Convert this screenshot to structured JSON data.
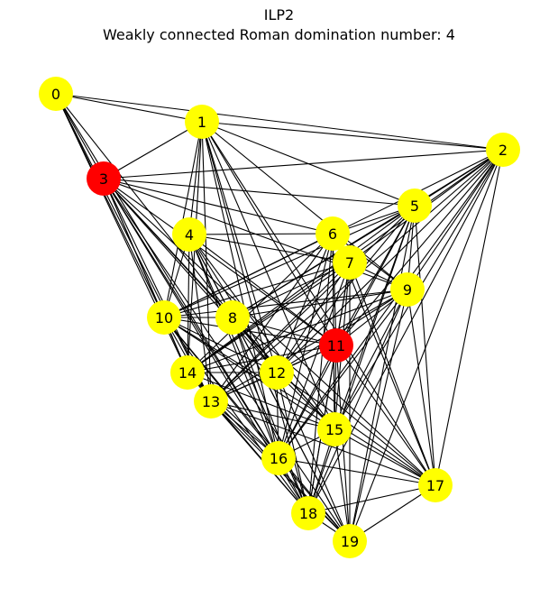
{
  "title": "ILP2",
  "subtitle": "Weakly connected Roman domination number: 4",
  "colors": {
    "default_node": "#ffff00",
    "highlight_node": "#ff0000",
    "edge": "#000000",
    "background": "#ffffff"
  },
  "graph": {
    "nodes": [
      {
        "id": 0,
        "label": "0",
        "color": "yellow"
      },
      {
        "id": 1,
        "label": "1",
        "color": "yellow"
      },
      {
        "id": 2,
        "label": "2",
        "color": "yellow"
      },
      {
        "id": 3,
        "label": "3",
        "color": "red"
      },
      {
        "id": 4,
        "label": "4",
        "color": "yellow"
      },
      {
        "id": 5,
        "label": "5",
        "color": "yellow"
      },
      {
        "id": 6,
        "label": "6",
        "color": "yellow"
      },
      {
        "id": 7,
        "label": "7",
        "color": "yellow"
      },
      {
        "id": 8,
        "label": "8",
        "color": "yellow"
      },
      {
        "id": 9,
        "label": "9",
        "color": "yellow"
      },
      {
        "id": 10,
        "label": "10",
        "color": "yellow"
      },
      {
        "id": 11,
        "label": "11",
        "color": "red"
      },
      {
        "id": 12,
        "label": "12",
        "color": "yellow"
      },
      {
        "id": 13,
        "label": "13",
        "color": "yellow"
      },
      {
        "id": 14,
        "label": "14",
        "color": "yellow"
      },
      {
        "id": 15,
        "label": "15",
        "color": "yellow"
      },
      {
        "id": 16,
        "label": "16",
        "color": "yellow"
      },
      {
        "id": 17,
        "label": "17",
        "color": "yellow"
      },
      {
        "id": 18,
        "label": "18",
        "color": "yellow"
      },
      {
        "id": 19,
        "label": "19",
        "color": "yellow"
      }
    ],
    "edges": [
      [
        0,
        1
      ],
      [
        0,
        2
      ],
      [
        0,
        3
      ],
      [
        0,
        10
      ],
      [
        0,
        13
      ],
      [
        0,
        14
      ],
      [
        0,
        16
      ],
      [
        0,
        12
      ],
      [
        1,
        2
      ],
      [
        1,
        3
      ],
      [
        1,
        4
      ],
      [
        1,
        5
      ],
      [
        1,
        10
      ],
      [
        1,
        14
      ],
      [
        1,
        11
      ],
      [
        1,
        12
      ],
      [
        1,
        15
      ],
      [
        1,
        16
      ],
      [
        1,
        17
      ],
      [
        1,
        18
      ],
      [
        1,
        9
      ],
      [
        1,
        13
      ],
      [
        2,
        3
      ],
      [
        2,
        5
      ],
      [
        2,
        7
      ],
      [
        2,
        9
      ],
      [
        2,
        8
      ],
      [
        2,
        11
      ],
      [
        2,
        12
      ],
      [
        2,
        14
      ],
      [
        2,
        15
      ],
      [
        2,
        16
      ],
      [
        2,
        17
      ],
      [
        2,
        18
      ],
      [
        2,
        19
      ],
      [
        2,
        10
      ],
      [
        2,
        13
      ],
      [
        3,
        5
      ],
      [
        3,
        6
      ],
      [
        3,
        8
      ],
      [
        3,
        10
      ],
      [
        3,
        11
      ],
      [
        3,
        12
      ],
      [
        3,
        13
      ],
      [
        3,
        14
      ],
      [
        3,
        15
      ],
      [
        3,
        16
      ],
      [
        3,
        17
      ],
      [
        3,
        18
      ],
      [
        3,
        19
      ],
      [
        3,
        9
      ],
      [
        4,
        6
      ],
      [
        4,
        7
      ],
      [
        4,
        10
      ],
      [
        4,
        11
      ],
      [
        4,
        12
      ],
      [
        4,
        13
      ],
      [
        4,
        14
      ],
      [
        4,
        15
      ],
      [
        4,
        16
      ],
      [
        4,
        18
      ],
      [
        4,
        19
      ],
      [
        4,
        8
      ],
      [
        5,
        8
      ],
      [
        5,
        10
      ],
      [
        5,
        11
      ],
      [
        5,
        12
      ],
      [
        5,
        13
      ],
      [
        5,
        14
      ],
      [
        5,
        15
      ],
      [
        5,
        16
      ],
      [
        5,
        17
      ],
      [
        5,
        18
      ],
      [
        5,
        19
      ],
      [
        5,
        6
      ],
      [
        5,
        9
      ],
      [
        6,
        7
      ],
      [
        6,
        9
      ],
      [
        6,
        10
      ],
      [
        6,
        11
      ],
      [
        6,
        12
      ],
      [
        6,
        15
      ],
      [
        6,
        16
      ],
      [
        6,
        17
      ],
      [
        6,
        18
      ],
      [
        6,
        13
      ],
      [
        6,
        14
      ],
      [
        7,
        8
      ],
      [
        7,
        9
      ],
      [
        7,
        10
      ],
      [
        7,
        11
      ],
      [
        7,
        12
      ],
      [
        7,
        13
      ],
      [
        7,
        15
      ],
      [
        7,
        16
      ],
      [
        7,
        17
      ],
      [
        7,
        18
      ],
      [
        7,
        19
      ],
      [
        7,
        14
      ],
      [
        8,
        9
      ],
      [
        8,
        10
      ],
      [
        8,
        11
      ],
      [
        8,
        12
      ],
      [
        8,
        15
      ],
      [
        8,
        16
      ],
      [
        8,
        17
      ],
      [
        8,
        18
      ],
      [
        8,
        19
      ],
      [
        9,
        10
      ],
      [
        9,
        11
      ],
      [
        9,
        12
      ],
      [
        9,
        13
      ],
      [
        9,
        15
      ],
      [
        9,
        16
      ],
      [
        9,
        17
      ],
      [
        9,
        18
      ],
      [
        9,
        19
      ],
      [
        9,
        14
      ],
      [
        10,
        11
      ],
      [
        10,
        12
      ],
      [
        10,
        13
      ],
      [
        10,
        14
      ],
      [
        10,
        15
      ],
      [
        10,
        16
      ],
      [
        10,
        17
      ],
      [
        10,
        18
      ],
      [
        10,
        19
      ],
      [
        11,
        12
      ],
      [
        11,
        13
      ],
      [
        11,
        15
      ],
      [
        11,
        16
      ],
      [
        11,
        17
      ],
      [
        11,
        18
      ],
      [
        11,
        19
      ],
      [
        11,
        14
      ],
      [
        12,
        13
      ],
      [
        12,
        14
      ],
      [
        12,
        15
      ],
      [
        12,
        16
      ],
      [
        12,
        17
      ],
      [
        12,
        18
      ],
      [
        12,
        19
      ],
      [
        13,
        15
      ],
      [
        13,
        16
      ],
      [
        13,
        17
      ],
      [
        13,
        18
      ],
      [
        13,
        19
      ],
      [
        14,
        15
      ],
      [
        14,
        16
      ],
      [
        14,
        18
      ],
      [
        14,
        19
      ],
      [
        15,
        16
      ],
      [
        15,
        17
      ],
      [
        15,
        18
      ],
      [
        15,
        19
      ],
      [
        16,
        17
      ],
      [
        16,
        18
      ],
      [
        16,
        19
      ],
      [
        17,
        18
      ],
      [
        17,
        19
      ],
      [
        18,
        19
      ]
    ]
  }
}
